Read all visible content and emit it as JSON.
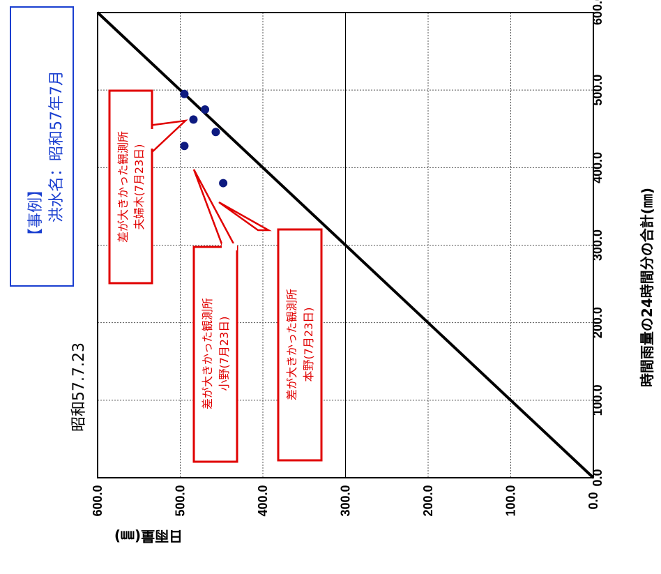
{
  "chart_data": {
    "type": "scatter",
    "x_axis_title": "時間雨量の24時間分の合計(㎜)",
    "y_axis_title": "日雨量(㎜)",
    "x_ticks": [
      "0.0",
      "100.0",
      "200.0",
      "300.0",
      "400.0",
      "500.0",
      "600.0"
    ],
    "y_ticks": [
      "0.0",
      "100.0",
      "200.0",
      "300.0",
      "400.0",
      "500.0",
      "600.0"
    ],
    "xlim": [
      0,
      600
    ],
    "ylim": [
      0,
      600
    ],
    "grid": true,
    "reference_line": "y = x",
    "points": [
      {
        "x": 495,
        "y": 495
      },
      {
        "x": 475,
        "y": 470
      },
      {
        "x": 462,
        "y": 484
      },
      {
        "x": 446,
        "y": 457
      },
      {
        "x": 428,
        "y": 495
      },
      {
        "x": 380,
        "y": 448
      }
    ],
    "date_label": "昭和57.7.23",
    "case_label": {
      "line1": "【事例】",
      "line2": "洪水名：昭和57年7月"
    },
    "callouts": [
      {
        "line1": "差が大きかった観測所",
        "line2": "夫婦木(7月23日)"
      },
      {
        "line1": "差が大きかった観測所",
        "line2": "小野(7月23日)"
      },
      {
        "line1": "差が大きかった観測所",
        "line2": "本野(7月23日)"
      }
    ],
    "colors": {
      "points": "#0d1a80",
      "callout": "#e00000",
      "case_box": "#1a3fd0",
      "line": "#000000"
    }
  }
}
